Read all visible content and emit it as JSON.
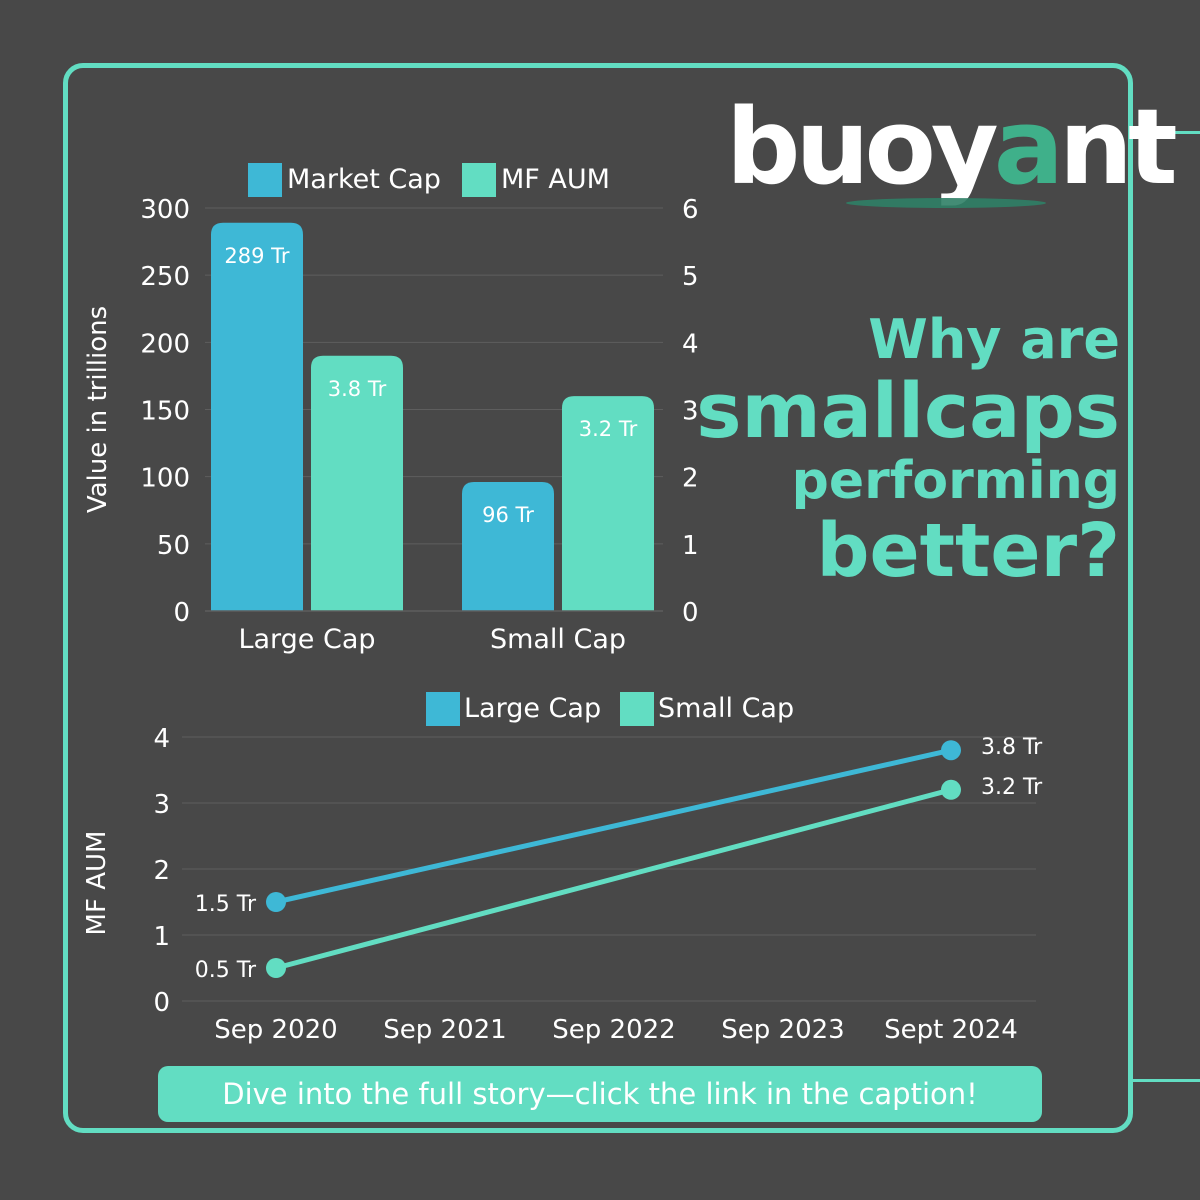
{
  "logo": {
    "text_main": "buoy",
    "text_accent": "a",
    "text_end": "nt"
  },
  "headline": {
    "line1": "Why are",
    "line2": "smallcaps",
    "line3": "performing",
    "line4": "better?"
  },
  "cta": {
    "label": "Dive into the full story—click the link in the caption!"
  },
  "colors": {
    "background": "#484848",
    "accent": "#62ddc2",
    "blue": "#3eb8d6",
    "mint": "#62ddc2",
    "grid": "#5e5e5e",
    "text": "#ffffff"
  },
  "chart_data": [
    {
      "type": "bar",
      "categories": [
        "Large Cap",
        "Small Cap"
      ],
      "series": [
        {
          "name": "Market Cap",
          "color": "#3eb8d6",
          "axis": "left",
          "values": [
            289,
            96
          ],
          "labels": [
            "289 Tr",
            "96 Tr"
          ]
        },
        {
          "name": "MF AUM",
          "color": "#62ddc2",
          "axis": "right",
          "values": [
            3.8,
            3.2
          ],
          "labels": [
            "3.8 Tr",
            "3.2 Tr"
          ]
        }
      ],
      "ylabel": "Value in trillions",
      "ylim": [
        0,
        300
      ],
      "yticks": [
        0,
        50,
        100,
        150,
        200,
        250,
        300
      ],
      "y2lim": [
        0,
        6
      ],
      "y2ticks": [
        0,
        1,
        2,
        3,
        4,
        5,
        6
      ],
      "grid": true,
      "legend": "top"
    },
    {
      "type": "line",
      "x": [
        "Sep 2020",
        "Sep 2021",
        "Sep 2022",
        "Sep 2023",
        "Sept 2024"
      ],
      "series": [
        {
          "name": "Large Cap",
          "color": "#3eb8d6",
          "points": [
            {
              "x": "Sep 2020",
              "y": 1.5,
              "label": "1.5 Tr"
            },
            {
              "x": "Sept 2024",
              "y": 3.8,
              "label": "3.8 Tr"
            }
          ]
        },
        {
          "name": "Small Cap",
          "color": "#62ddc2",
          "points": [
            {
              "x": "Sep 2020",
              "y": 0.5,
              "label": "0.5 Tr"
            },
            {
              "x": "Sept 2024",
              "y": 3.2,
              "label": "3.2 Tr"
            }
          ]
        }
      ],
      "ylabel": "MF AUM",
      "ylim": [
        0,
        4
      ],
      "yticks": [
        0,
        1,
        2,
        3,
        4
      ],
      "grid": true,
      "legend": "top"
    }
  ]
}
